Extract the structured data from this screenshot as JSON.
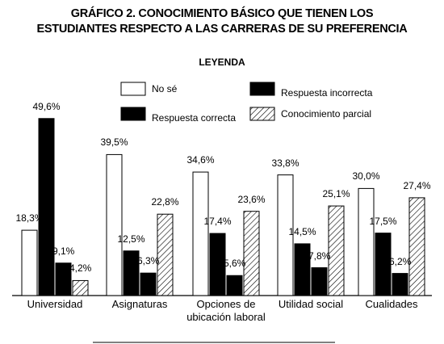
{
  "chart_data": {
    "type": "bar",
    "title": "GRÁFICO 2. CONOCIMIENTO BÁSICO QUE TIENEN LOS ESTUDIANTES RESPECTO A LAS CARRERAS DE SU PREFERENCIA",
    "legend_title": "LEYENDA",
    "categories": [
      "Universidad",
      "Asignaturas",
      "Opciones de ubicación laboral",
      "Utilidad social",
      "Cualidades"
    ],
    "series": [
      {
        "name": "No sé",
        "color": "#ffffff",
        "values": [
          18.3,
          39.5,
          34.6,
          33.8,
          30.0
        ],
        "value_labels": [
          "18,3%",
          "39,5%",
          "34,6%",
          "33,8%",
          "30,0%"
        ]
      },
      {
        "name": "Respuesta correcta",
        "color": "#000000",
        "values": [
          49.6,
          12.5,
          17.4,
          14.5,
          17.5
        ],
        "value_labels": [
          "49,6%",
          "12,5%",
          "17,4%",
          "14,5%",
          "17,5%"
        ]
      },
      {
        "name": "Respuesta incorrecta",
        "color": "#000000",
        "values": [
          9.1,
          6.3,
          5.6,
          7.8,
          6.2
        ],
        "value_labels": [
          "9,1%",
          "6,3%",
          "5,6%",
          "7,8%",
          "6,2%"
        ]
      },
      {
        "name": "Conocimiento parcial",
        "color": "#ffffff",
        "pattern": "hatch",
        "values": [
          4.2,
          22.8,
          23.6,
          25.1,
          27.4
        ],
        "value_labels": [
          "4,2%",
          "22,8%",
          "23,6%",
          "25,1%",
          "27,4%"
        ]
      }
    ]
  }
}
